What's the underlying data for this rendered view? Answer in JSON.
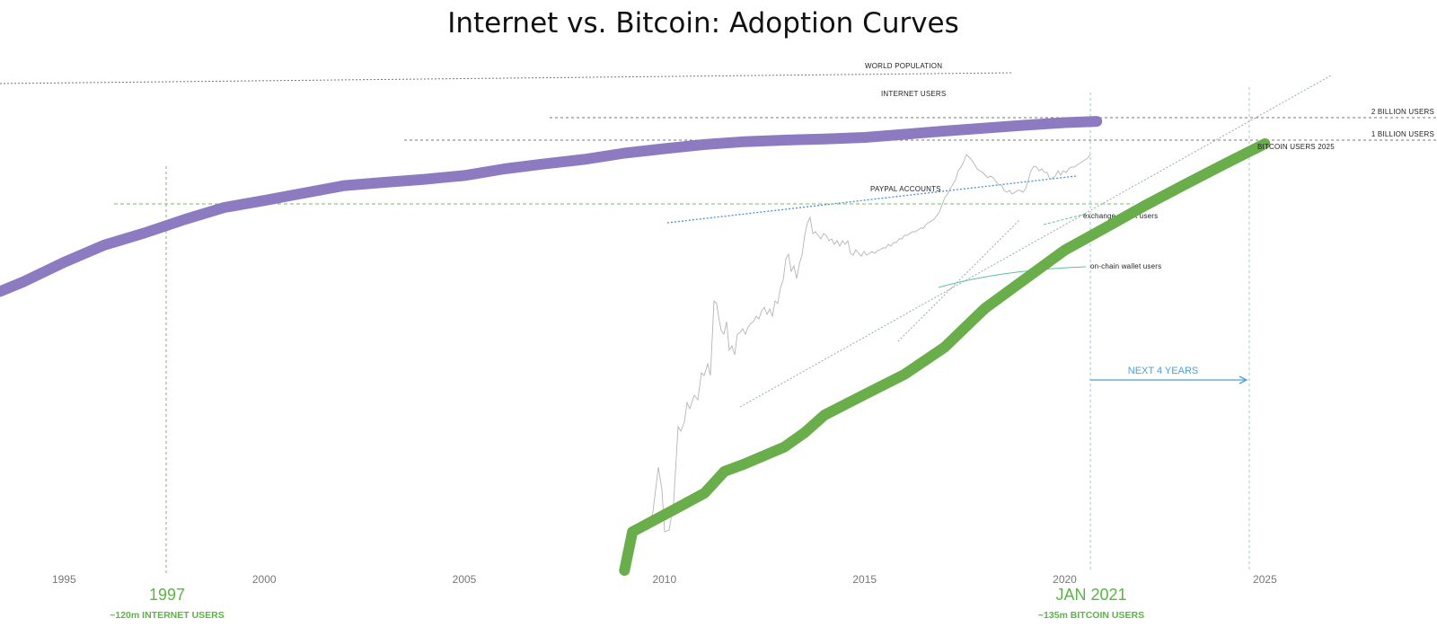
{
  "chart_data": {
    "type": "line",
    "title": "Internet vs. Bitcoin: Adoption Curves",
    "x_ticks": [
      "1995",
      "2000",
      "2005",
      "2010",
      "2015",
      "2020",
      "2025"
    ],
    "x_range": [
      1993.4,
      2029.3
    ],
    "y_scale": "log",
    "series": [
      {
        "name": "INTERNET USERS",
        "color": "#8c7bc0",
        "x": [
          1993.4,
          1994,
          1995,
          1996,
          1997,
          1998,
          1999,
          2000,
          2001,
          2002,
          2003,
          2004,
          2005,
          2006,
          2007,
          2008,
          2009,
          2010,
          2011,
          2012,
          2013,
          2014,
          2015,
          2016,
          2017,
          2018,
          2019,
          2020,
          2020.8
        ],
        "y": [
          30,
          38,
          60,
          90,
          120,
          165,
          220,
          260,
          310,
          370,
          400,
          430,
          470,
          550,
          620,
          690,
          800,
          890,
          980,
          1050,
          1090,
          1120,
          1160,
          1250,
          1350,
          1450,
          1550,
          1650,
          1700
        ]
      },
      {
        "name": "BITCOIN USERS",
        "color": "#6aae4c",
        "x": [
          2009.0,
          2009.2,
          2010,
          2011,
          2011.5,
          2012,
          2013,
          2013.5,
          2014,
          2015,
          2016,
          2017,
          2018,
          2019,
          2020,
          2021,
          2022,
          2023,
          2024,
          2025
        ],
        "y": [
          0.04,
          0.1,
          0.15,
          0.25,
          0.42,
          0.5,
          0.75,
          1.05,
          1.6,
          2.6,
          4.2,
          8,
          20,
          40,
          80,
          135,
          230,
          380,
          620,
          1000
        ]
      }
    ],
    "reference_lines": [
      {
        "label": "WORLD POPULATION"
      },
      {
        "label": "2 BILLION USERS"
      },
      {
        "label": "1 BILLION USERS"
      },
      {
        "label": "PAYPAL ACCOUNTS"
      }
    ],
    "annotations": {
      "bitcoin_users_2025": "BITCOIN USERS 2025",
      "exchange_wallet_users": "exchange wallet users",
      "onchain_wallet_users": "on-chain wallet users",
      "next_4_years": "NEXT 4 YEARS",
      "marker_1997": "1997",
      "marker_1997_sub": "~120m INTERNET USERS",
      "marker_2021": "JAN 2021",
      "marker_2021_sub": "~135m BITCOIN USERS"
    },
    "grid": false,
    "legend": "none"
  }
}
